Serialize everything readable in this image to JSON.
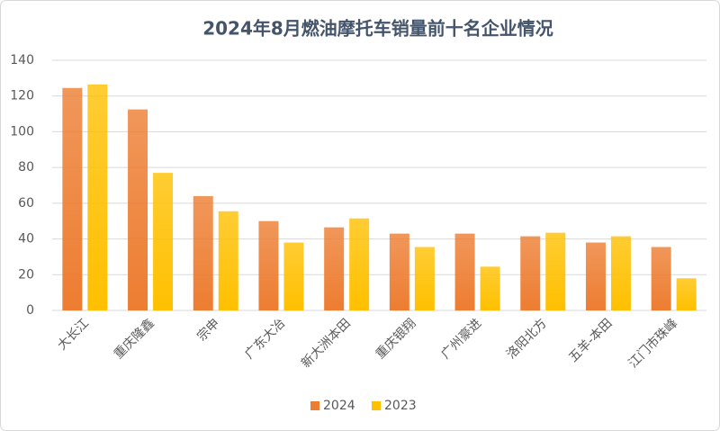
{
  "chart_data": {
    "type": "bar",
    "title": "2024年8月燃油摩托车销量前十名企业情况",
    "categories": [
      "大长江",
      "重庆隆鑫",
      "宗申",
      "广东大冶",
      "新大洲本田",
      "重庆银翔",
      "广州豪进",
      "洛阳北方",
      "五羊-本田",
      "江门市珠峰"
    ],
    "series": [
      {
        "name": "2024",
        "color": "#ed7d31",
        "values": [
          124.5,
          112.5,
          64,
          50,
          46.5,
          43,
          43,
          41.5,
          38,
          35.5
        ]
      },
      {
        "name": "2023",
        "color": "#ffc000",
        "values": [
          126.5,
          77,
          55.5,
          38,
          51.5,
          35.5,
          24.5,
          43.5,
          41.5,
          18
        ]
      }
    ],
    "ylim": [
      0,
      140
    ],
    "yticks": [
      0,
      20,
      40,
      60,
      80,
      100,
      120,
      140
    ],
    "grid": true,
    "legend": "bottom"
  }
}
